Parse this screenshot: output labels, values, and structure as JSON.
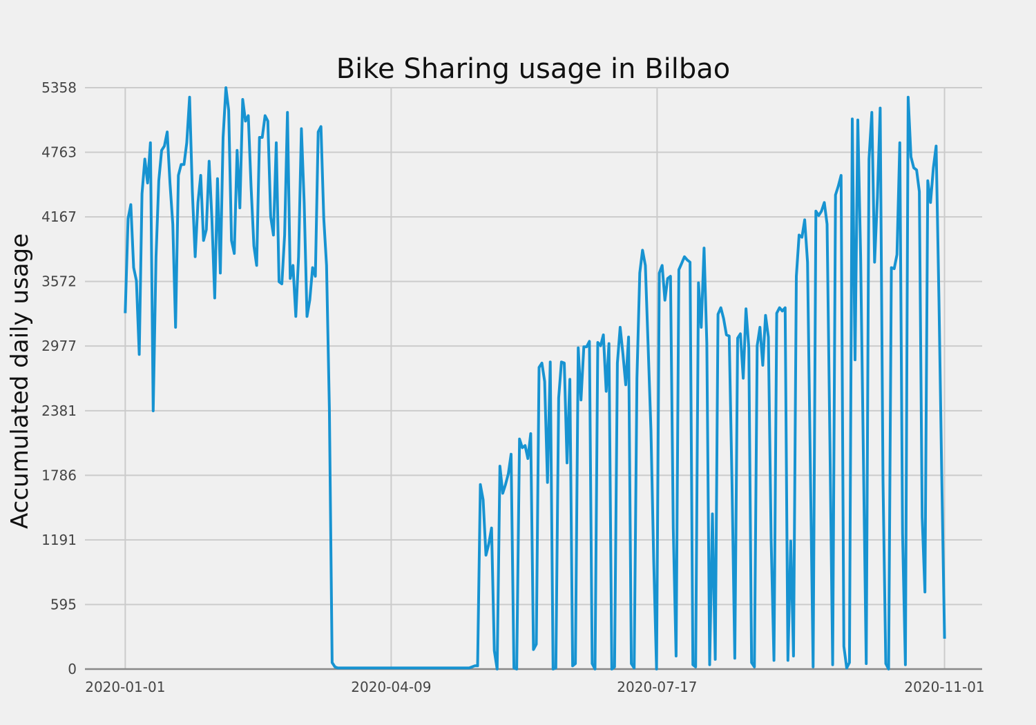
{
  "chart_data": {
    "type": "line",
    "title": "Bike Sharing usage in Bilbao",
    "xlabel": "",
    "ylabel": "Accumulated daily usage",
    "x_start": "2020-01-01",
    "x_end": "2020-11-01",
    "xlim": [
      "2019-12-17",
      "2020-11-15"
    ],
    "ylim": [
      0,
      5358
    ],
    "x_ticks": [
      "2020-01-01",
      "2020-04-09",
      "2020-07-17",
      "2020-11-01"
    ],
    "y_ticks": [
      0,
      595,
      1191,
      1786,
      2381,
      2977,
      3572,
      4167,
      4763,
      5358
    ],
    "grid": true,
    "legend": "none",
    "colors": {
      "line": "#1793d1",
      "background": "#f0f0f0",
      "grid": "#cbcbcb",
      "axis": "#888888"
    },
    "series": [
      {
        "values": [
          3280,
          4150,
          4280,
          3700,
          3580,
          2900,
          4380,
          4700,
          4480,
          4850,
          2380,
          3800,
          4500,
          4780,
          4820,
          4950,
          4480,
          4100,
          3150,
          4550,
          4650,
          4650,
          4850,
          5270,
          4400,
          3800,
          4300,
          4550,
          3950,
          4050,
          4680,
          4150,
          3420,
          4520,
          3650,
          4900,
          5358,
          5150,
          3950,
          3830,
          4780,
          4250,
          5250,
          5050,
          5100,
          4450,
          3900,
          3720,
          4900,
          4900,
          5100,
          5050,
          4170,
          4000,
          4850,
          3570,
          3550,
          4000,
          5130,
          3600,
          3720,
          3250,
          3800,
          4980,
          4300,
          3250,
          3400,
          3700,
          3620,
          4950,
          5000,
          4150,
          3720,
          2400,
          60,
          20,
          10,
          10,
          10,
          10,
          10,
          10,
          10,
          10,
          10,
          10,
          10,
          10,
          10,
          10,
          10,
          10,
          10,
          10,
          10,
          10,
          10,
          10,
          10,
          10,
          10,
          10,
          10,
          10,
          10,
          10,
          10,
          10,
          10,
          10,
          10,
          10,
          10,
          10,
          10,
          10,
          10,
          10,
          10,
          10,
          10,
          10,
          10,
          10,
          20,
          30,
          30,
          1700,
          1560,
          1050,
          1150,
          1300,
          170,
          0,
          1870,
          1620,
          1700,
          1800,
          1980,
          10,
          0,
          2120,
          2040,
          2060,
          1940,
          2170,
          180,
          230,
          2780,
          2820,
          2650,
          1720,
          2830,
          0,
          10,
          2500,
          2830,
          2820,
          1900,
          2670,
          30,
          50,
          2960,
          2480,
          2970,
          2970,
          3020,
          50,
          0,
          3010,
          2980,
          3080,
          2560,
          3000,
          0,
          20,
          2820,
          3150,
          2900,
          2620,
          3060,
          50,
          10,
          2680,
          3650,
          3860,
          3720,
          2980,
          2200,
          1000,
          0,
          3650,
          3720,
          3400,
          3600,
          3620,
          1300,
          120,
          3680,
          3740,
          3800,
          3770,
          3750,
          40,
          20,
          3560,
          3150,
          3880,
          3000,
          40,
          1430,
          90,
          3270,
          3330,
          3230,
          3080,
          3070,
          1700,
          100,
          3050,
          3090,
          2680,
          3320,
          2960,
          60,
          20,
          2980,
          3150,
          2800,
          3260,
          3060,
          1200,
          80,
          3280,
          3330,
          3300,
          3330,
          80,
          1180,
          120,
          3620,
          4000,
          3980,
          4140,
          3750,
          1900,
          20,
          4220,
          4180,
          4220,
          4300,
          4100,
          2100,
          40,
          4370,
          4450,
          4550,
          210,
          10,
          60,
          5070,
          2850,
          5060,
          3800,
          1950,
          50,
          4700,
          5130,
          3750,
          4350,
          5170,
          1730,
          50,
          0,
          3700,
          3690,
          3820,
          4850,
          1250,
          40,
          5270,
          4720,
          4620,
          4600,
          4400,
          1400,
          710,
          4500,
          4300,
          4620,
          4820,
          3400,
          1800,
          280
        ]
      }
    ]
  }
}
